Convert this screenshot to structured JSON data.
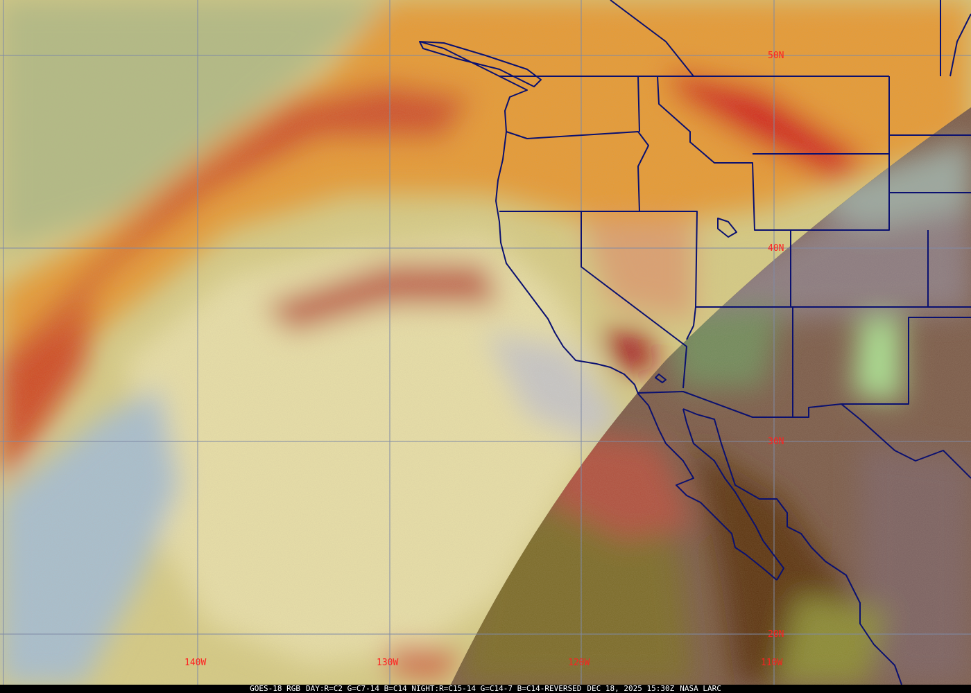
{
  "map": {
    "latitude_labels": [
      "50N",
      "40N",
      "30N",
      "20N"
    ],
    "longitude_labels": [
      "140W",
      "130W",
      "120W",
      "110W"
    ],
    "colors": {
      "grid": "#7f8aa6",
      "borders": "#0a1070",
      "labels": "#ff2020",
      "caption_background": "#000000",
      "caption_text": "#ffffff"
    }
  },
  "caption": {
    "product": "GOES-18 RGB",
    "recipe": "DAY:R=C2 G=C7-14 B=C14 NIGHT:R=C15-14 G=C14-7 B=C14-REVERSED",
    "timestamp": "DEC 18, 2025 15:30Z",
    "credit": "NASA LARC"
  }
}
